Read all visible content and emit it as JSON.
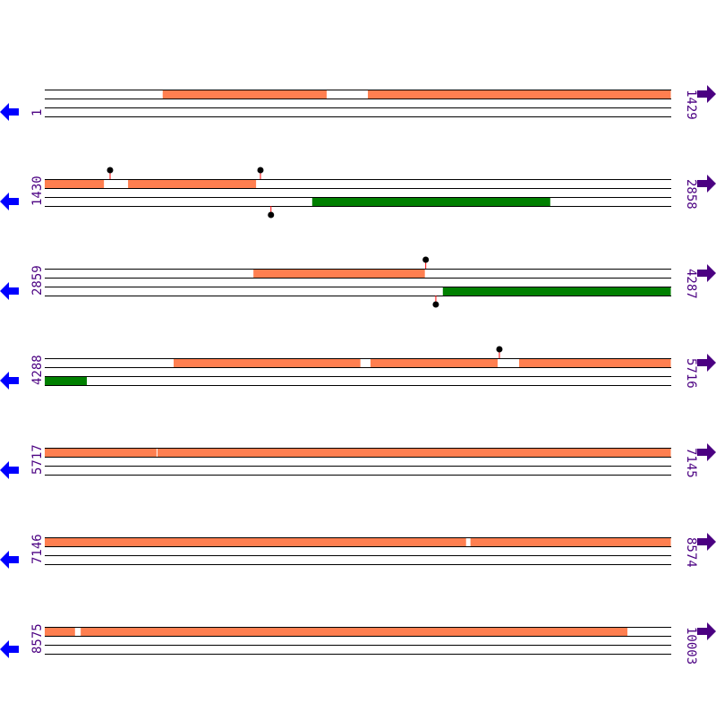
{
  "bp_per_row": 1429,
  "colors": {
    "forward_feature": "#ff7f50",
    "reverse_feature": "#008000",
    "label": "#4b0082",
    "left_arrow": "#0000ff",
    "right_arrow": "#4b0082",
    "stem": "#ff0000",
    "line": "#000000"
  },
  "icons": {
    "left": "arrow-left-icon",
    "right": "arrow-right-icon"
  },
  "rows": [
    {
      "start": "1",
      "end": "1429",
      "s": 1,
      "top": [
        [
          270,
          644
        ],
        [
          738,
          1429
        ]
      ],
      "bottom": [],
      "top_pins": [],
      "bottom_pins": []
    },
    {
      "start": "1430",
      "end": "2858",
      "s": 1430,
      "top": [
        [
          1430,
          1565
        ],
        [
          1620,
          1912
        ]
      ],
      "bottom": [
        [
          2040,
          2583
        ]
      ],
      "top_pins": [
        1579,
        1922
      ],
      "bottom_pins": [
        1946
      ]
    },
    {
      "start": "2859",
      "end": "4287",
      "s": 2859,
      "top": [
        [
          3335,
          3726
        ]
      ],
      "bottom": [
        [
          3767,
          4287
        ]
      ],
      "top_pins": [
        3728
      ],
      "bottom_pins": [
        3751
      ]
    },
    {
      "start": "4288",
      "end": "5716",
      "s": 4288,
      "top": [
        [
          4582,
          5008
        ],
        [
          5031,
          5321
        ],
        [
          5370,
          5716
        ]
      ],
      "bottom": [
        [
          4288,
          4384
        ]
      ],
      "top_pins": [
        5325
      ],
      "bottom_pins": []
    },
    {
      "start": "5717",
      "end": "7145",
      "s": 5717,
      "top": [
        [
          5717,
          5972
        ],
        [
          5974,
          7145
        ]
      ],
      "bottom": [],
      "top_pins": [],
      "bottom_pins": []
    },
    {
      "start": "7146",
      "end": "8574",
      "s": 7146,
      "top": [
        [
          7146,
          8107
        ],
        [
          8117,
          8574
        ]
      ],
      "bottom": [],
      "top_pins": [],
      "bottom_pins": []
    },
    {
      "start": "8575",
      "end": "10003",
      "s": 8575,
      "top": [
        [
          8575,
          8644
        ],
        [
          8657,
          9904
        ]
      ],
      "bottom": [],
      "top_pins": [],
      "bottom_pins": []
    }
  ]
}
